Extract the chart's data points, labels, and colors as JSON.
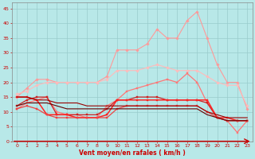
{
  "xlabel": "Vent moyen/en rafales ( km/h )",
  "x": [
    0,
    1,
    2,
    3,
    4,
    5,
    6,
    7,
    8,
    9,
    10,
    11,
    12,
    13,
    14,
    15,
    16,
    17,
    18,
    19,
    20,
    21,
    22,
    23
  ],
  "series": [
    {
      "name": "s1_light_peak",
      "color": "#ff9999",
      "lw": 0.8,
      "marker": "D",
      "ms": 1.8,
      "values": [
        15,
        18,
        21,
        21,
        20,
        20,
        20,
        20,
        20,
        22,
        31,
        31,
        31,
        33,
        38,
        35,
        35,
        41,
        44,
        35,
        26,
        20,
        20,
        11
      ]
    },
    {
      "name": "s2_light_flat",
      "color": "#ffbbbb",
      "lw": 0.8,
      "marker": "D",
      "ms": 1.8,
      "values": [
        16,
        17,
        19,
        20,
        20,
        20,
        20,
        20,
        20,
        21,
        24,
        24,
        24,
        25,
        26,
        25,
        24,
        24,
        24,
        22,
        20,
        19,
        19,
        12
      ]
    },
    {
      "name": "s3_med",
      "color": "#ff7777",
      "lw": 0.9,
      "marker": "s",
      "ms": 1.8,
      "values": [
        11,
        13,
        14,
        15,
        10,
        9,
        9,
        8,
        8,
        12,
        14,
        17,
        18,
        19,
        20,
        21,
        20,
        23,
        20,
        13,
        8,
        7,
        3,
        7
      ]
    },
    {
      "name": "s4_dark",
      "color": "#cc2222",
      "lw": 0.9,
      "marker": "s",
      "ms": 1.8,
      "values": [
        12,
        14,
        15,
        15,
        9,
        9,
        9,
        9,
        9,
        11,
        14,
        14,
        15,
        15,
        15,
        14,
        14,
        14,
        14,
        13,
        8,
        7,
        7,
        7
      ]
    },
    {
      "name": "s5_red",
      "color": "#ff2222",
      "lw": 1.1,
      "marker": "s",
      "ms": 1.8,
      "values": [
        15,
        15,
        14,
        9,
        9,
        9,
        8,
        8,
        8,
        9,
        14,
        14,
        14,
        14,
        14,
        14,
        14,
        14,
        14,
        14,
        8,
        8,
        7,
        7
      ]
    },
    {
      "name": "s6_med2",
      "color": "#ee4444",
      "lw": 0.9,
      "marker": "s",
      "ms": 1.8,
      "values": [
        11,
        12,
        11,
        9,
        8,
        8,
        8,
        8,
        8,
        8,
        11,
        12,
        12,
        12,
        12,
        12,
        12,
        12,
        12,
        10,
        8,
        7,
        7,
        7
      ]
    },
    {
      "name": "s7_flat_dark",
      "color": "#990000",
      "lw": 0.8,
      "marker": null,
      "ms": 1.5,
      "values": [
        15,
        15,
        14,
        14,
        13,
        13,
        13,
        12,
        12,
        12,
        12,
        12,
        12,
        12,
        12,
        12,
        12,
        12,
        12,
        10,
        9,
        8,
        8,
        8
      ]
    },
    {
      "name": "s8_darkest",
      "color": "#660000",
      "lw": 0.8,
      "marker": null,
      "ms": 1.5,
      "values": [
        12,
        13,
        13,
        13,
        12,
        11,
        11,
        11,
        11,
        11,
        11,
        11,
        11,
        11,
        11,
        11,
        11,
        11,
        11,
        9,
        8,
        7,
        7,
        7
      ]
    }
  ],
  "ylim": [
    0,
    47
  ],
  "yticks": [
    0,
    5,
    10,
    15,
    20,
    25,
    30,
    35,
    40,
    45
  ],
  "bg_color": "#b8e8e8",
  "grid_color": "#99cccc",
  "xlabel_color": "#cc0000",
  "tick_color": "#cc0000",
  "arrow_row_color": "#cc0000"
}
